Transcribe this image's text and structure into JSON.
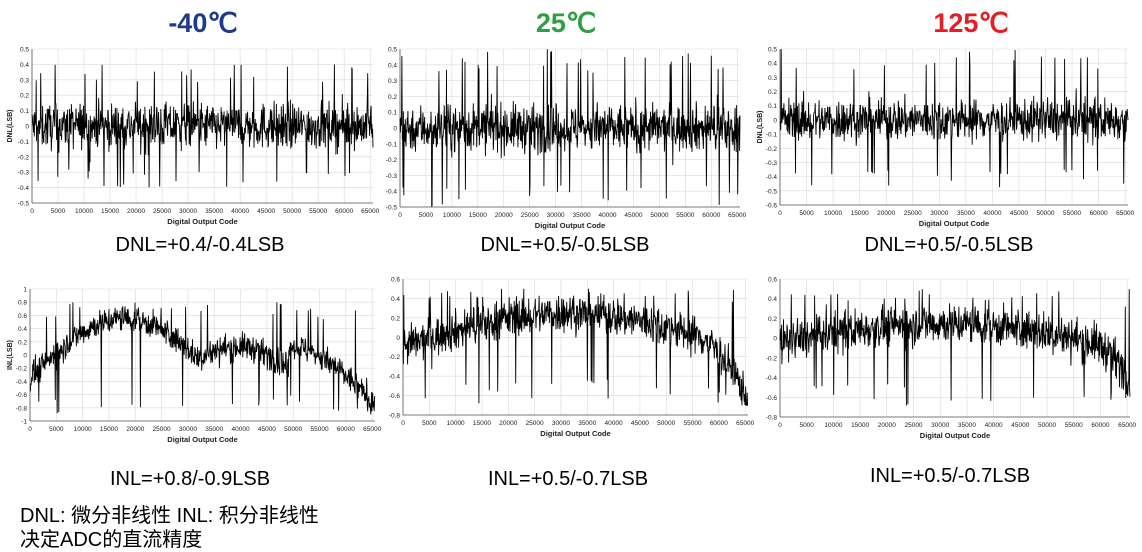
{
  "temperatures": [
    {
      "label": "-40℃",
      "color": "#1f3a8a"
    },
    {
      "label": "25℃",
      "color": "#2ea043"
    },
    {
      "label": "125℃",
      "color": "#e31e24"
    }
  ],
  "captions": {
    "dnl": [
      "DNL=+0.4/-0.4LSB",
      "DNL=+0.5/-0.5LSB",
      "DNL=+0.5/-0.5LSB"
    ],
    "inl": [
      "INL=+0.8/-0.9LSB",
      "INL=+0.5/-0.7LSB",
      "INL=+0.5/-0.7LSB"
    ]
  },
  "note": {
    "line1": "DNL: 微分非线性 INL: 积分非线性",
    "line2": "决定ADC的直流精度"
  },
  "chart_data": [
    {
      "type": "line",
      "ylabel": "DNL(LSB)",
      "xlabel": "Digital Output Code",
      "ylim": [
        -0.5,
        0.5
      ],
      "yticks": [
        "0.5",
        "0.4",
        "0.3",
        "0.2",
        "0.1",
        "0",
        "-0.1",
        "-0.2",
        "-0.3",
        "-0.4",
        "-0.5"
      ],
      "xticks": [
        "0",
        "5000",
        "10000",
        "15000",
        "20000",
        "25000",
        "30000",
        "35000",
        "40000",
        "45000",
        "50000",
        "55000",
        "60000",
        "65000"
      ],
      "xlim": [
        0,
        65536
      ],
      "series": [
        {
          "max": 0.4,
          "min": -0.4
        }
      ]
    },
    {
      "type": "line",
      "ylabel": "",
      "xlabel": "Digital Output Code",
      "ylim": [
        -0.5,
        0.5
      ],
      "yticks": [
        "0.5",
        "0.4",
        "0.3",
        "0.2",
        "0.1",
        "0",
        "-0.1",
        "-0.2",
        "-0.3",
        "-0.4",
        "-0.5"
      ],
      "xticks": [
        "0",
        "5000",
        "10000",
        "15000",
        "20000",
        "25000",
        "30000",
        "35000",
        "40000",
        "45000",
        "50000",
        "55000",
        "60000",
        "65000"
      ],
      "xlim": [
        0,
        65536
      ],
      "series": [
        {
          "max": 0.5,
          "min": -0.5
        }
      ]
    },
    {
      "type": "line",
      "ylabel": "DNL(LSB)",
      "xlabel": "Digital Output Code",
      "ylim": [
        -0.6,
        0.5
      ],
      "yticks": [
        "0.5",
        "0.4",
        "0.3",
        "0.2",
        "0.1",
        "0",
        "-0.1",
        "-0.2",
        "-0.3",
        "-0.4",
        "-0.5",
        "-0.6"
      ],
      "xticks": [
        "0",
        "5000",
        "10000",
        "15000",
        "20000",
        "25000",
        "30000",
        "35000",
        "40000",
        "45000",
        "50000",
        "55000",
        "60000",
        "65000"
      ],
      "xlim": [
        0,
        65536
      ],
      "series": [
        {
          "max": 0.5,
          "min": -0.5
        }
      ]
    },
    {
      "type": "line",
      "ylabel": "INL(LSB)",
      "xlabel": "Digital Output Code",
      "ylim": [
        -1,
        1
      ],
      "yticks": [
        "1",
        "0.8",
        "0.6",
        "0.4",
        "0.2",
        "0",
        "-0.2",
        "-0.4",
        "-0.6",
        "-0.8",
        "-1"
      ],
      "xticks": [
        "0",
        "5000",
        "10000",
        "15000",
        "20000",
        "25000",
        "30000",
        "35000",
        "40000",
        "45000",
        "50000",
        "55000",
        "60000",
        "65000"
      ],
      "xlim": [
        0,
        65536
      ],
      "series": [
        {
          "max": 0.8,
          "min": -0.9
        }
      ]
    },
    {
      "type": "line",
      "ylabel": "",
      "xlabel": "Digital Output Code",
      "ylim": [
        -0.8,
        0.6
      ],
      "yticks": [
        "0.6",
        "0.4",
        "0.2",
        "0",
        "-0.2",
        "-0.4",
        "-0.6",
        "-0.8"
      ],
      "xticks": [
        "0",
        "5000",
        "10000",
        "15000",
        "20000",
        "25000",
        "30000",
        "35000",
        "40000",
        "45000",
        "50000",
        "55000",
        "60000",
        "65000"
      ],
      "xlim": [
        0,
        65536
      ],
      "series": [
        {
          "max": 0.5,
          "min": -0.7
        }
      ]
    },
    {
      "type": "line",
      "ylabel": "",
      "xlabel": "Digital Output Code",
      "ylim": [
        -0.8,
        0.6
      ],
      "yticks": [
        "0.6",
        "0.4",
        "0.2",
        "0",
        "-0.2",
        "-0.4",
        "-0.6",
        "-0.8"
      ],
      "xticks": [
        "0",
        "5000",
        "10000",
        "15000",
        "20000",
        "25000",
        "30000",
        "35000",
        "40000",
        "45000",
        "50000",
        "55000",
        "60000",
        "65000"
      ],
      "xlim": [
        0,
        65536
      ],
      "series": [
        {
          "max": 0.5,
          "min": -0.7
        }
      ]
    }
  ]
}
